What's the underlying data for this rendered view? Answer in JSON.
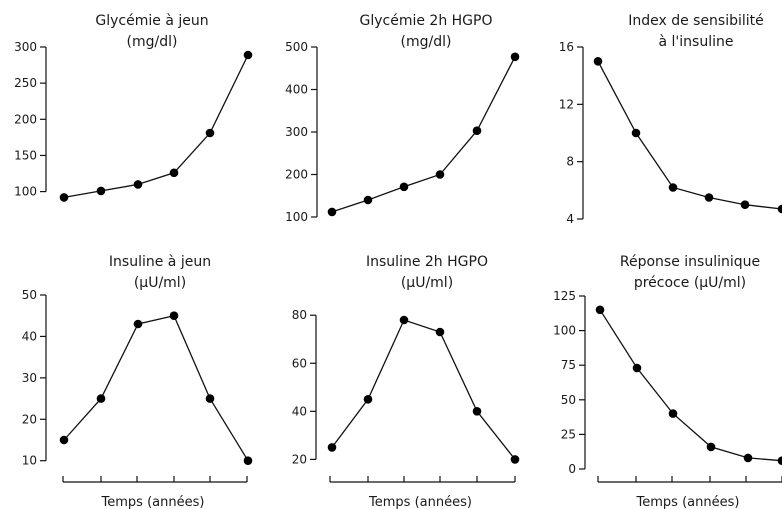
{
  "chart_data": [
    {
      "type": "line",
      "title_lines": [
        "Glycémie à jeun",
        "(mg/dl)"
      ],
      "x": [
        1,
        2,
        3,
        4,
        5,
        6
      ],
      "values": [
        92,
        101,
        110,
        126,
        181,
        289
      ],
      "ylim": [
        87,
        300
      ],
      "yticks": [
        100,
        150,
        200,
        250,
        300
      ],
      "grid": false,
      "xlabel": ""
    },
    {
      "type": "line",
      "title_lines": [
        "Glycémie 2h HGPO",
        "(mg/dl)"
      ],
      "x": [
        1,
        2,
        3,
        4,
        5,
        6
      ],
      "values": [
        112,
        140,
        171,
        200,
        303,
        477
      ],
      "ylim": [
        100,
        500
      ],
      "yticks": [
        100,
        200,
        300,
        400,
        500
      ],
      "grid": false,
      "xlabel": ""
    },
    {
      "type": "line",
      "title_lines": [
        "Index de sensibilité",
        "à l'insuline"
      ],
      "x": [
        1,
        2,
        3,
        4,
        5,
        6
      ],
      "values": [
        15,
        10,
        6.2,
        5.5,
        5,
        4.7
      ],
      "ylim": [
        4,
        16
      ],
      "yticks": [
        4,
        8,
        12,
        16
      ],
      "grid": false,
      "xlabel": ""
    },
    {
      "type": "line",
      "title_lines": [
        "Insuline à jeun",
        "(µU/ml)"
      ],
      "x": [
        1,
        2,
        3,
        4,
        5,
        6
      ],
      "values": [
        15,
        25,
        43,
        45,
        25,
        10
      ],
      "ylim": [
        8,
        50
      ],
      "yticks": [
        10,
        20,
        30,
        40,
        50
      ],
      "grid": false,
      "xlabel": "Temps (années)"
    },
    {
      "type": "line",
      "title_lines": [
        "Insuline 2h HGPO",
        "(µU/ml)"
      ],
      "x": [
        1,
        2,
        3,
        4,
        5,
        6
      ],
      "values": [
        25,
        45,
        78,
        73,
        40,
        20
      ],
      "ylim": [
        16,
        88
      ],
      "yticks": [
        20,
        40,
        60,
        80
      ],
      "grid": false,
      "xlabel": "Temps (années)"
    },
    {
      "type": "line",
      "title_lines": [
        "Réponse insulinique",
        "précoce (µU/ml)"
      ],
      "x": [
        1,
        2,
        3,
        4,
        5,
        6
      ],
      "values": [
        115,
        73,
        40,
        16,
        8,
        6
      ],
      "ylim": [
        0,
        125
      ],
      "yticks": [
        0,
        25,
        50,
        75,
        100,
        125
      ],
      "grid": false,
      "xlabel": "Temps (années)"
    }
  ]
}
